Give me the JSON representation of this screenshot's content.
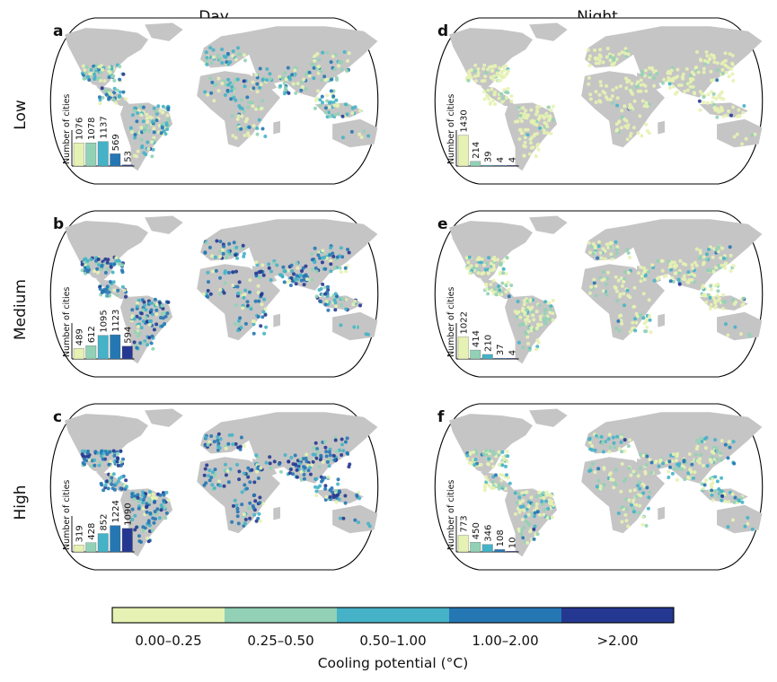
{
  "chart_data": {
    "type": "bar",
    "column_titles": [
      "Day",
      "Night"
    ],
    "row_labels": [
      "Low",
      "Medium",
      "High"
    ],
    "bar_axis_label": "Number of cities",
    "colorbar": {
      "title": "Cooling potential (°C)",
      "categories": [
        "0.00–0.25",
        "0.25–0.50",
        "0.50–1.00",
        "1.00–2.00",
        ">2.00"
      ],
      "colors": [
        "#e5f2b3",
        "#92d1b5",
        "#45b2c7",
        "#2577b4",
        "#253891"
      ]
    },
    "panels": [
      {
        "id": "a",
        "period": "Day",
        "scenario": "Low",
        "values": [
          1076,
          1078,
          1137,
          569,
          53
        ],
        "labels": [
          "1076",
          "1078",
          "1137",
          "569",
          "53"
        ]
      },
      {
        "id": "b",
        "period": "Day",
        "scenario": "Medium",
        "values": [
          489,
          612,
          1095,
          1123,
          594
        ],
        "labels": [
          "489",
          "612",
          "1095",
          "1123",
          "594"
        ]
      },
      {
        "id": "c",
        "period": "Day",
        "scenario": "High",
        "values": [
          319,
          428,
          852,
          1224,
          1090
        ],
        "labels": [
          "319",
          "428",
          "852",
          "1224",
          "1090"
        ]
      },
      {
        "id": "d",
        "period": "Night",
        "scenario": "Low",
        "values": [
          1430,
          214,
          39,
          4,
          4
        ],
        "labels": [
          "1430",
          "214",
          "39",
          "4",
          "4"
        ]
      },
      {
        "id": "e",
        "period": "Night",
        "scenario": "Medium",
        "values": [
          1022,
          414,
          210,
          37,
          4
        ],
        "labels": [
          "1022",
          "414",
          "210",
          "37",
          "4"
        ]
      },
      {
        "id": "f",
        "period": "Night",
        "scenario": "High",
        "values": [
          773,
          450,
          346,
          108,
          10
        ],
        "labels": [
          "773",
          "450",
          "346",
          "108",
          "10"
        ]
      }
    ]
  }
}
